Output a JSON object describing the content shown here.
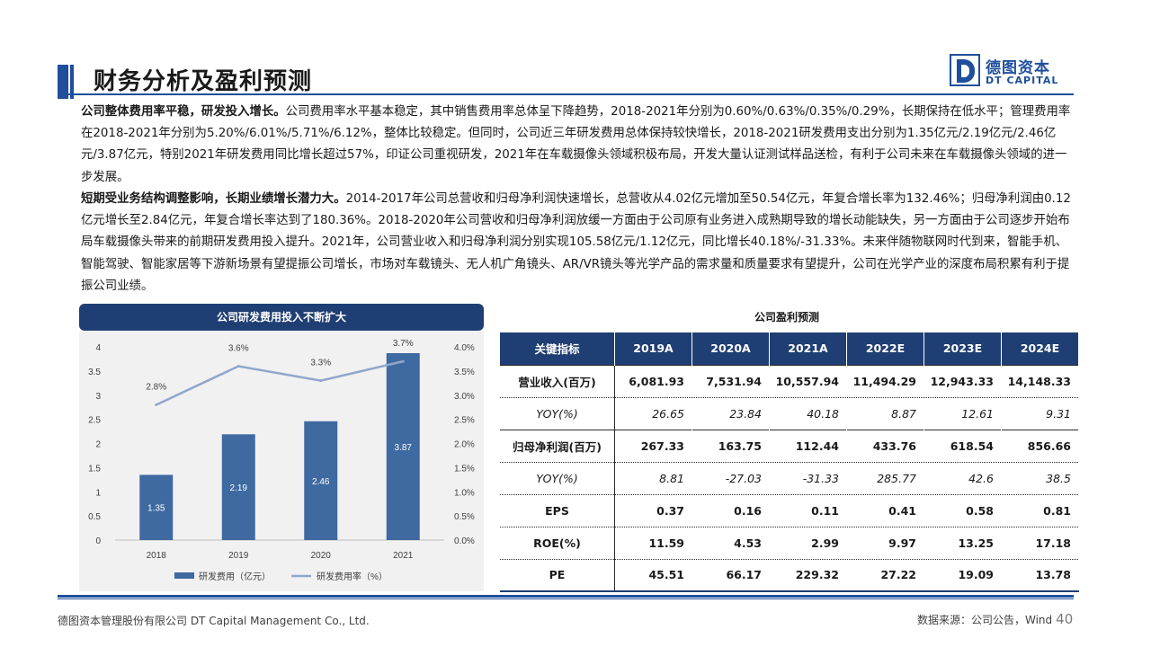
{
  "header": {
    "title": "财务分析及盈利预测",
    "logo_cn": "德图资本",
    "logo_en": "DT CAPITAL"
  },
  "paragraphs": [
    {
      "bold": "公司整体费用率平稳，研发投入增长。",
      "text": "公司费用率水平基本稳定，其中销售费用率总体呈下降趋势，2018-2021年分别为0.60%/0.63%/0.35%/0.29%，长期保持在低水平；管理费用率在2018-2021年分别为5.20%/6.01%/5.71%/6.12%，整体比较稳定。但同时，公司近三年研发费用总体保持较快增长，2018-2021研发费用支出分别为1.35亿元/2.19亿元/2.46亿元/3.87亿元，特别2021年研发费用同比增长超过57%，印证公司重视研发，2021年在车载摄像头领域积极布局，开发大量认证测试样品送检，有利于公司未来在车载摄像头领域的进一步发展。"
    },
    {
      "bold": "短期受业务结构调整影响，长期业绩增长潜力大。",
      "text": "2014-2017年公司总营收和归母净利润快速增长，总营收从4.02亿元增加至50.54亿元，年复合增长率为132.46%；归母净利润由0.12亿元增长至2.84亿元，年复合增长率达到了180.36%。2018-2020年公司营收和归母净利润放缓一方面由于公司原有业务进入成熟期导致的增长动能缺失，另一方面由于公司逐步开始布局车载摄像头带来的前期研发费用投入提升。2021年，公司营业收入和归母净利润分别实现105.58亿元/1.12亿元，同比增长40.18%/-31.33%。未来伴随物联网时代到来，智能手机、智能驾驶、智能家居等下游新场景有望提振公司增长，市场对车载镜头、无人机广角镜头、AR/VR镜头等光学产品的需求量和质量要求有望提升，公司在光学产业的深度布局积累有利于提振公司业绩。"
    }
  ],
  "chart_data": {
    "type": "bar",
    "title": "公司研发费用投入不断扩大",
    "categories": [
      "2018",
      "2019",
      "2020",
      "2021"
    ],
    "series": [
      {
        "name": "研发费用（亿元）",
        "kind": "bar",
        "axis": "left",
        "values": [
          1.35,
          2.19,
          2.46,
          3.87
        ],
        "labels": [
          "1.35",
          "2.19",
          "2.46",
          "3.87"
        ],
        "color": "#3f6aa1"
      },
      {
        "name": "研发费用率（%）",
        "kind": "line",
        "axis": "right",
        "values": [
          2.8,
          3.6,
          3.3,
          3.7
        ],
        "labels": [
          "2.8%",
          "3.6%",
          "3.3%",
          "3.7%"
        ],
        "color": "#8fa7cc"
      }
    ],
    "ylim": [
      0,
      4
    ],
    "y2lim": [
      0,
      4
    ],
    "yticks": [
      "0",
      "0.5",
      "1",
      "1.5",
      "2",
      "2.5",
      "3",
      "3.5",
      "4"
    ],
    "y2ticks": [
      "0.0%",
      "0.5%",
      "1.0%",
      "1.5%",
      "2.0%",
      "2.5%",
      "3.0%",
      "3.5%",
      "4.0%"
    ],
    "legend": "bottom",
    "grid": false
  },
  "table": {
    "title": "公司盈利预测",
    "headers": [
      "关键指标",
      "2019A",
      "2020A",
      "2021A",
      "2022E",
      "2023E",
      "2024E"
    ],
    "rows": [
      {
        "label": "营业收入(百万)",
        "values": [
          "6,081.93",
          "7,531.94",
          "10,557.94",
          "11,494.29",
          "12,943.33",
          "14,148.33"
        ]
      },
      {
        "label": "YOY(%)",
        "values": [
          "26.65",
          "23.84",
          "40.18",
          "8.87",
          "12.61",
          "9.31"
        ]
      },
      {
        "label": "归母净利润(百万)",
        "values": [
          "267.33",
          "163.75",
          "112.44",
          "433.76",
          "618.54",
          "856.66"
        ]
      },
      {
        "label": "YOY(%)",
        "values": [
          "8.81",
          "-27.03",
          "-31.33",
          "285.77",
          "42.6",
          "38.5"
        ]
      },
      {
        "label": "EPS",
        "values": [
          "0.37",
          "0.16",
          "0.11",
          "0.41",
          "0.58",
          "0.81"
        ]
      },
      {
        "label": "ROE(%)",
        "values": [
          "11.59",
          "4.53",
          "2.99",
          "9.97",
          "13.25",
          "17.18"
        ]
      },
      {
        "label": "PE",
        "values": [
          "45.51",
          "66.17",
          "229.32",
          "27.22",
          "19.09",
          "13.78"
        ]
      }
    ]
  },
  "footer": {
    "company": "德图资本管理股份有限公司 DT Capital Management Co., Ltd.",
    "source": "数据来源：公司公告，Wind",
    "page": "40"
  }
}
